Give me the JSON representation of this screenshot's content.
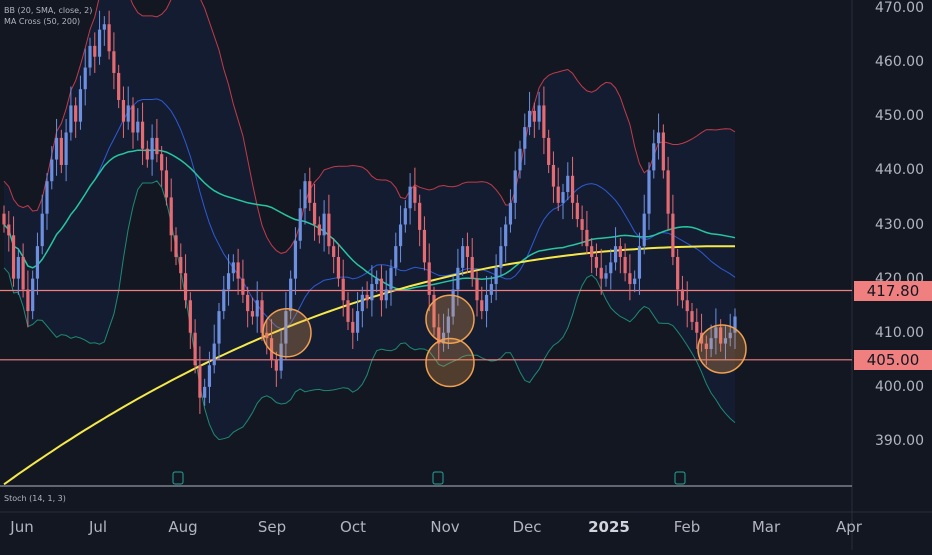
{
  "indicators": {
    "bb_label": "BB (20, SMA, close, 2)",
    "ma_label": "MA Cross (50, 200)",
    "stoch_label": "Stoch (14, 1, 3)"
  },
  "colors": {
    "background": "#131722",
    "up": "#6c8fe0",
    "down": "#e56b73",
    "ma50": "#26c6a0",
    "ma200": "#f5e94a",
    "bb_upper": "#c23b4a",
    "bb_lower": "#1f8a70",
    "bb_basis": "#2e5bd6",
    "level": "#f08080",
    "circle": "#f0a050"
  },
  "chart_data": {
    "type": "candlestick",
    "ylim": [
      384,
      472
    ],
    "y_ticks": [
      "390.00",
      "400.00",
      "410.00",
      "420.00",
      "430.00",
      "440.00",
      "450.00",
      "460.00",
      "470.00"
    ],
    "x_ticks": [
      "Jun",
      "Jul",
      "Aug",
      "Sep",
      "Oct",
      "Nov",
      "Dec",
      "2025",
      "Feb",
      "Mar",
      "Apr"
    ],
    "bold_x_tick": "2025",
    "horizontal_levels": [
      {
        "value": 417.8,
        "label": "417.80"
      },
      {
        "value": 405.0,
        "label": "405.00"
      }
    ],
    "highlight_circles": [
      {
        "x": 287,
        "y": 410.0
      },
      {
        "x": 450,
        "y": 412.5
      },
      {
        "x": 450,
        "y": 404.5
      },
      {
        "x": 722,
        "y": 407.0
      }
    ],
    "earnings_markers": [
      178,
      438,
      680
    ],
    "closes": [
      430,
      428,
      420,
      424,
      418,
      414,
      420,
      426,
      432,
      438,
      442,
      446,
      441,
      447,
      452,
      449,
      455,
      459,
      463,
      461,
      466,
      467,
      462,
      458,
      453,
      449,
      452,
      447,
      449,
      444,
      442,
      446,
      443,
      440,
      435,
      428,
      424,
      421,
      416,
      410,
      404,
      398,
      400,
      404,
      408,
      414,
      418,
      421,
      423,
      420,
      417,
      414,
      413,
      416,
      410,
      409,
      405,
      403,
      408,
      414,
      420,
      427,
      433,
      438,
      434,
      430,
      428,
      432,
      426,
      424,
      420,
      416,
      412,
      410,
      414,
      417,
      416,
      419,
      420,
      416,
      418,
      422,
      426,
      430,
      433,
      437,
      434,
      429,
      423,
      417,
      411,
      408,
      410,
      413,
      418,
      422,
      426,
      424,
      420,
      416,
      414,
      417,
      419,
      422,
      426,
      430,
      434,
      440,
      444,
      448,
      451,
      449,
      452,
      446,
      441,
      437,
      434,
      436,
      439,
      434,
      431,
      429,
      426,
      424,
      422,
      420,
      421,
      423,
      426,
      424,
      421,
      419,
      420,
      426,
      432,
      440,
      445,
      447,
      440,
      432,
      424,
      418,
      416,
      414,
      412,
      410,
      408,
      407,
      409,
      411,
      408,
      409,
      410,
      413
    ]
  }
}
